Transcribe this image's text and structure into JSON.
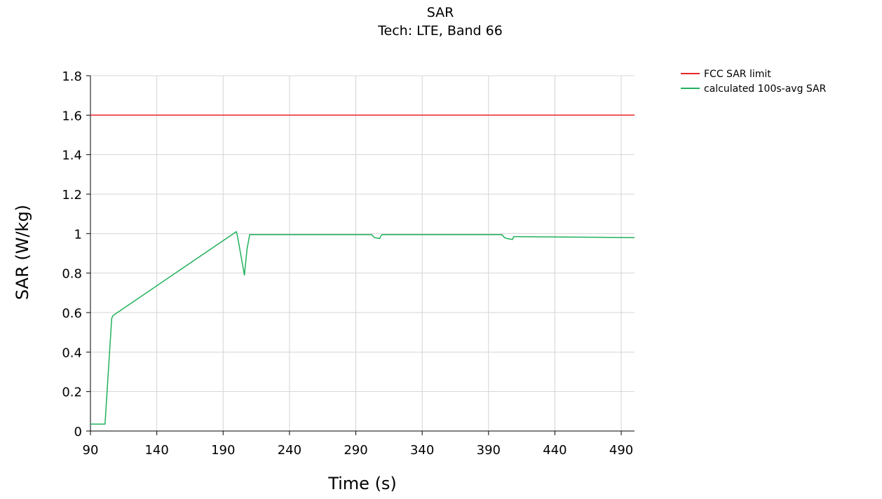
{
  "chart_data": {
    "type": "line",
    "title": "SAR",
    "subtitle": "Tech: LTE, Band 66",
    "xlabel": "Time (s)",
    "ylabel": "SAR (W/kg)",
    "xlim": [
      90,
      500
    ],
    "ylim": [
      0,
      1.8
    ],
    "x_ticks": [
      90,
      140,
      190,
      240,
      290,
      340,
      390,
      440,
      490
    ],
    "x_tick_labels": [
      "90",
      "140",
      "190",
      "240",
      "290",
      "340",
      "390",
      "440",
      "490"
    ],
    "y_ticks": [
      0,
      0.2,
      0.4,
      0.6,
      0.8,
      1.0,
      1.2,
      1.4,
      1.6,
      1.8
    ],
    "y_tick_labels": [
      "0",
      "0.2",
      "0.4",
      "0.6",
      "0.8",
      "1",
      "1.2",
      "1.4",
      "1.6",
      "1.8"
    ],
    "grid": true,
    "legend_position": "top-right outside",
    "series": [
      {
        "name": "FCC SAR limit",
        "color": "#e8262a",
        "x": [
          90,
          500
        ],
        "y": [
          1.6,
          1.6
        ]
      },
      {
        "name": "calculated 100s-avg SAR",
        "color": "#20b15b",
        "x": [
          90,
          101,
          106,
          107,
          200,
          201,
          206,
          208,
          210,
          300,
          302,
          304,
          308,
          309,
          310,
          400,
          402,
          404,
          408,
          409,
          410,
          500
        ],
        "y": [
          0.035,
          0.035,
          0.57,
          0.585,
          1.01,
          0.98,
          0.79,
          0.92,
          0.995,
          0.995,
          0.995,
          0.98,
          0.975,
          0.99,
          0.995,
          0.995,
          0.98,
          0.975,
          0.97,
          0.985,
          0.985,
          0.98
        ]
      }
    ]
  }
}
